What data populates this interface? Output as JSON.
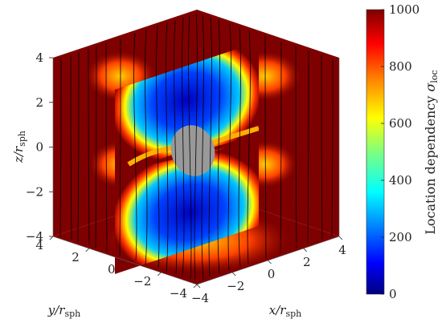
{
  "chart_data": {
    "type": "heatmap",
    "title": "",
    "xlabel": "x/r",
    "xlabel_sub": "sph",
    "ylabel": "y/r",
    "ylabel_sub": "sph",
    "zlabel": "z/r",
    "zlabel_sub": "sph",
    "xlim": [
      -4,
      4
    ],
    "ylim": [
      -4,
      4
    ],
    "zlim": [
      -4,
      4
    ],
    "x_ticks": [
      "−4",
      "−2",
      "0",
      "2",
      "4"
    ],
    "y_ticks": [
      "−4",
      "−2",
      "0",
      "2",
      "4"
    ],
    "z_ticks": [
      "−4",
      "−2",
      "0",
      "2",
      "4"
    ],
    "colorbar": {
      "label": "Location dependency",
      "label_symbol": "σ",
      "label_sub": "loc",
      "range": [
        0,
        1000
      ],
      "ticks": [
        "0",
        "200",
        "400",
        "600",
        "800",
        "1000"
      ],
      "colormap": "jet"
    },
    "sphere_radius": 1,
    "field_lines": "vertical streamlines (black)",
    "slices": [
      "x = 4",
      "y = 4",
      "z = -4",
      "y = 0"
    ]
  },
  "colors": {
    "jet": [
      "#00007f",
      "#0000ff",
      "#007fff",
      "#00ffff",
      "#7fff7f",
      "#ffff00",
      "#ff7f00",
      "#ff0000",
      "#7f0000"
    ],
    "sphere": "#999999",
    "field_line": "#000000"
  }
}
